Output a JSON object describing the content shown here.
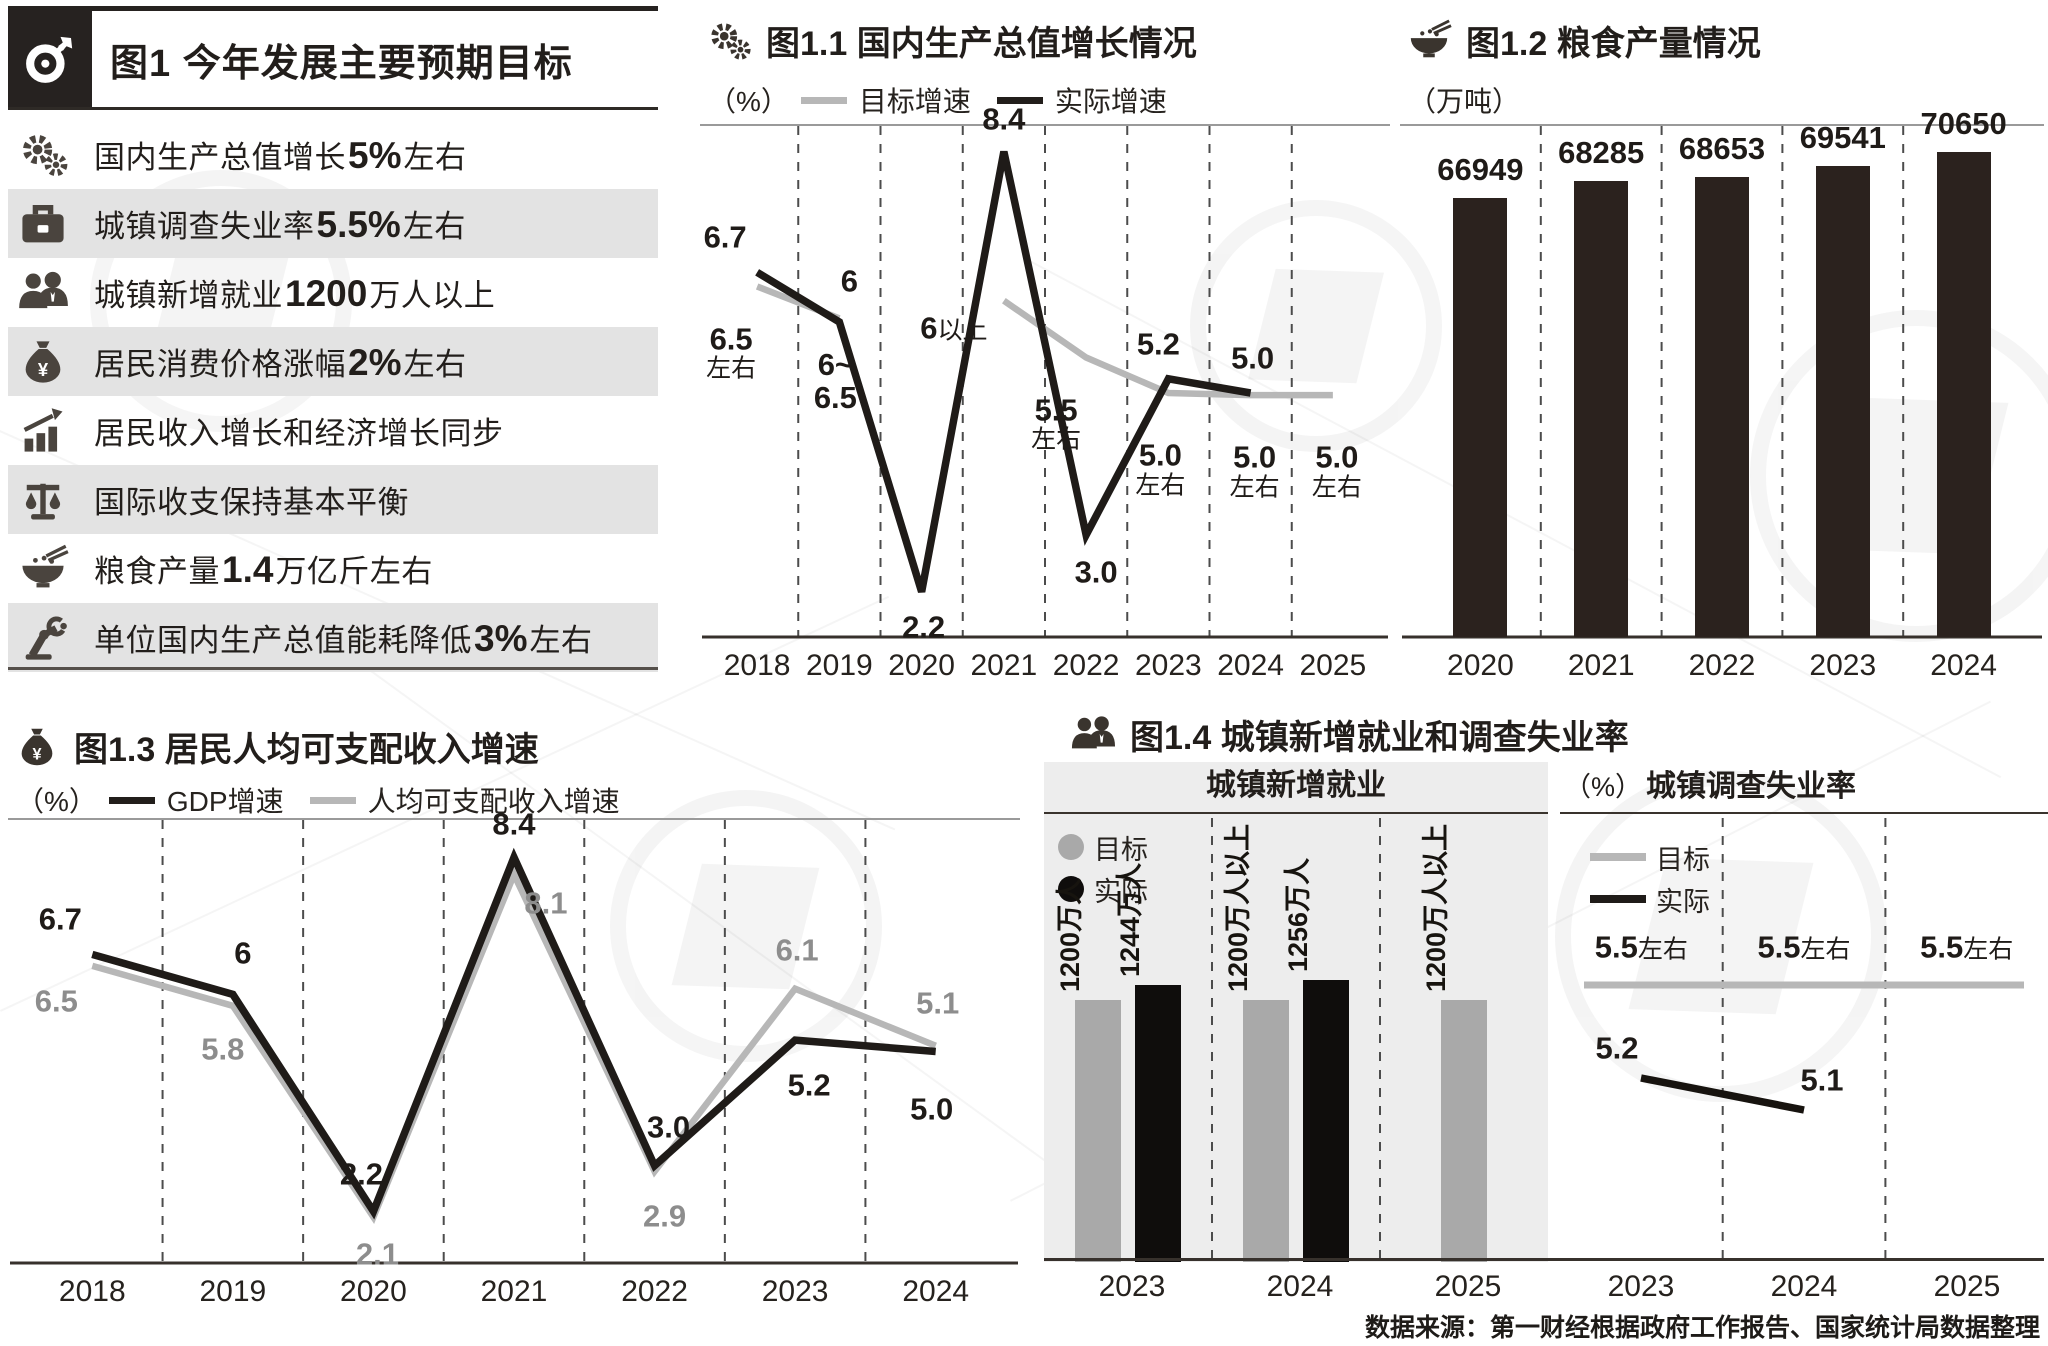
{
  "source": "数据来源：第一财经根据政府工作报告、国家统计局数据整理",
  "colors": {
    "ink": "#221e1b",
    "bar_dark": "#2b221e",
    "bar_black": "#0f0d0c",
    "target_gray": "#b7b7b7",
    "bar_gray": "#a9a9a9",
    "row_gray": "#e3e3e3",
    "panel_gray": "#ededed"
  },
  "fig1": {
    "icon": "target-icon",
    "title": "图1 今年发展主要预期目标",
    "items": [
      {
        "icon": "gears-icon",
        "pre": "国内生产总值增长",
        "em": "5%",
        "post": "左右"
      },
      {
        "icon": "briefcase-icon",
        "pre": "城镇调查失业率",
        "em": "5.5%",
        "post": "左右"
      },
      {
        "icon": "people-icon",
        "pre": "城镇新增就业",
        "em": "1200",
        "post": "万人以上"
      },
      {
        "icon": "moneybag-icon",
        "pre": "居民消费价格涨幅",
        "em": "2%",
        "post": "左右"
      },
      {
        "icon": "income-chart-icon",
        "pre": "居民收入增长和经济增长同步",
        "em": "",
        "post": ""
      },
      {
        "icon": "scales-icon",
        "pre": "国际收支保持基本平衡",
        "em": "",
        "post": ""
      },
      {
        "icon": "rice-bowl-icon",
        "pre": "粮食产量",
        "em": "1.4",
        "post": "万亿斤左右"
      },
      {
        "icon": "robot-arm-icon",
        "pre": "单位国内生产总值能耗降低",
        "em": "3%",
        "post": "左右"
      }
    ]
  },
  "chart_data": [
    {
      "id": "gdp-growth",
      "type": "line",
      "icon": "gears-icon",
      "title": "图1.1 国内生产总值增长情况",
      "unit": "（%）",
      "categories": [
        "2018",
        "2019",
        "2020",
        "2021",
        "2022",
        "2023",
        "2024",
        "2025"
      ],
      "series": [
        {
          "name": "目标增速",
          "role": "target",
          "values": [
            6.5,
            6.05,
            null,
            6.3,
            5.5,
            5.0,
            4.97,
            4.97
          ],
          "labels": [
            "6.5\n左右",
            "6~\n6.5",
            null,
            "6以上",
            "5.5\n左右",
            "5.0\n左右",
            "5.0\n左右",
            "5.0\n左右"
          ]
        },
        {
          "name": "实际增速",
          "role": "actual",
          "values": [
            6.7,
            6.0,
            2.2,
            8.4,
            3.0,
            5.2,
            5.0,
            null
          ],
          "labels": [
            "6.7",
            "6",
            "2.2",
            "8.4",
            "3.0",
            "5.2",
            "5.0",
            null
          ]
        }
      ]
    },
    {
      "id": "grain-output",
      "type": "bar",
      "icon": "rice-bowl-icon",
      "title": "图1.2 粮食产量情况",
      "unit": "（万吨）",
      "categories": [
        "2020",
        "2021",
        "2022",
        "2023",
        "2024"
      ],
      "values": [
        66949,
        68285,
        68653,
        69541,
        70650
      ],
      "labels": [
        "66949",
        "68285",
        "68653",
        "69541",
        "70650"
      ]
    },
    {
      "id": "income-growth",
      "type": "line",
      "icon": "moneybag-icon",
      "title": "图1.3 居民人均可支配收入增速",
      "unit": "（%）",
      "categories": [
        "2018",
        "2019",
        "2020",
        "2021",
        "2022",
        "2023",
        "2024"
      ],
      "series": [
        {
          "name": "GDP增速",
          "role": "actual",
          "values": [
            6.7,
            6.0,
            2.2,
            8.4,
            3.0,
            5.2,
            5.0
          ],
          "labels": [
            "6.7",
            "6",
            "2.2",
            "8.4",
            "3.0",
            "5.2",
            "5.0"
          ]
        },
        {
          "name": "人均可支配收入增速",
          "role": "target",
          "values": [
            6.5,
            5.8,
            2.1,
            8.1,
            2.9,
            6.1,
            5.1
          ],
          "labels": [
            "6.5",
            "5.8",
            "2.1",
            "8.1",
            "2.9",
            "6.1",
            "5.1"
          ]
        }
      ]
    },
    {
      "id": "employment-unemployment",
      "type": "bar+line",
      "icon": "people-icon",
      "title": "图1.4 城镇新增就业和调查失业率",
      "employment": {
        "subtitle": "城镇新增就业",
        "legend": [
          "目标",
          "实际"
        ],
        "categories": [
          "2023",
          "2024",
          "2025"
        ],
        "groups": [
          {
            "target_label": "1200万人",
            "target_value": 1200,
            "actual_label": "1244万人",
            "actual_value": 1244
          },
          {
            "target_label": "1200万人以上",
            "target_value": 1200,
            "actual_label": "1256万人",
            "actual_value": 1256
          },
          {
            "target_label": "1200万人以上",
            "target_value": 1200,
            "actual_label": null,
            "actual_value": null
          }
        ]
      },
      "unemployment": {
        "unit": "（%）",
        "subtitle": "城镇调查失业率",
        "legend": [
          "目标",
          "实际"
        ],
        "categories": [
          "2023",
          "2024",
          "2025"
        ],
        "target_labels": [
          "5.5左右",
          "5.5左右",
          "5.5左右"
        ],
        "target_value": 5.5,
        "actual_labels": [
          "5.2",
          "5.1",
          null
        ],
        "actual_values": [
          5.2,
          5.1,
          null
        ]
      }
    }
  ]
}
